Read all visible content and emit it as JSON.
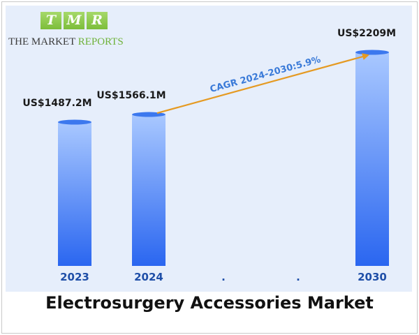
{
  "logo": {
    "letters": [
      "T",
      "M",
      "R"
    ],
    "line_dark": "THE MARKET ",
    "line_green": "REPORTS"
  },
  "chart_data": {
    "type": "bar",
    "title": "Electrosurgery Accessories Market",
    "categories": [
      "2023",
      "2024",
      ".",
      ".",
      "2030"
    ],
    "values": [
      1487.2,
      1566.1,
      null,
      null,
      2209
    ],
    "value_labels": [
      "US$1487.2M",
      "US$1566.1M",
      "",
      "",
      "US$2209M"
    ],
    "ylim": [
      0,
      2209
    ],
    "annotation": {
      "text": "CAGR 2024-2030:5.9%",
      "from_category": "2024",
      "to_category": "2030"
    },
    "colors": {
      "bar_top": "#a9c8ff",
      "bar_bottom": "#2a66f0",
      "bar_cap": "#3c78ee",
      "arrow": "#e59a22",
      "annotation_text": "#3a7ad8",
      "category_label": "#1f4fa8"
    }
  }
}
